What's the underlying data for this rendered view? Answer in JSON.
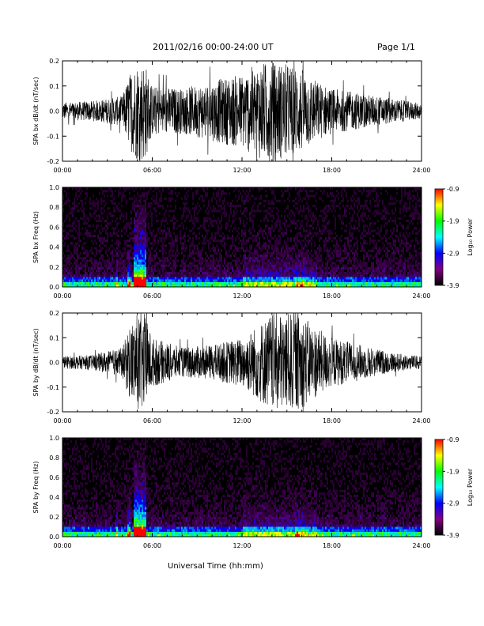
{
  "header": {
    "title": "2011/02/16  00:00-24:00 UT",
    "page": "Page 1/1"
  },
  "footer": {
    "xlabel": "Universal Time (hh:mm)"
  },
  "colorbar": {
    "label": "Log₁₀ Power",
    "ticks": [
      "-0.9",
      "-1.9",
      "-2.9",
      "-3.9"
    ],
    "colors": [
      "#ff0000",
      "#ffff00",
      "#00ff00",
      "#00ffff",
      "#0000ff",
      "#800080",
      "#000000"
    ]
  },
  "chart_data": [
    {
      "type": "line",
      "ylabel": "SPA bx dB/dt (nT/sec)",
      "xlim": [
        0,
        24
      ],
      "ylim": [
        -0.2,
        0.2
      ],
      "x_ticks": [
        "00:00",
        "06:00",
        "12:00",
        "18:00",
        "24:00"
      ],
      "y_ticks": [
        "-0.2",
        "-0.1",
        "0.0",
        "0.1",
        "0.2"
      ],
      "envelope": {
        "x": [
          0,
          2,
          4,
          4.5,
          5,
          5.5,
          6,
          8,
          10,
          12,
          13,
          14,
          15,
          16,
          17,
          18,
          20,
          22,
          24
        ],
        "amplitude": [
          0.035,
          0.04,
          0.06,
          0.15,
          0.2,
          0.2,
          0.1,
          0.09,
          0.12,
          0.15,
          0.19,
          0.2,
          0.19,
          0.17,
          0.12,
          0.09,
          0.07,
          0.05,
          0.03
        ]
      }
    },
    {
      "type": "heatmap",
      "ylabel": "SPA bx Freq (Hz)",
      "xlim": [
        0,
        24
      ],
      "ylim": [
        0,
        1.0
      ],
      "x_ticks": [
        "00:00",
        "06:00",
        "12:00",
        "18:00",
        "24:00"
      ],
      "y_ticks": [
        "0.0",
        "0.2",
        "0.4",
        "0.6",
        "0.8",
        "1.0"
      ],
      "zlim": [
        -3.9,
        -0.9
      ]
    },
    {
      "type": "line",
      "ylabel": "SPA by dB/dt (nT/sec)",
      "xlim": [
        0,
        24
      ],
      "ylim": [
        -0.2,
        0.2
      ],
      "x_ticks": [
        "00:00",
        "06:00",
        "12:00",
        "18:00",
        "24:00"
      ],
      "y_ticks": [
        "-0.2",
        "-0.1",
        "0.0",
        "0.1",
        "0.2"
      ],
      "envelope": {
        "x": [
          0,
          2,
          4,
          4.5,
          5,
          5.5,
          6,
          8,
          10,
          12,
          13,
          14,
          15,
          16,
          17,
          18,
          20,
          22,
          24
        ],
        "amplitude": [
          0.025,
          0.03,
          0.06,
          0.15,
          0.2,
          0.2,
          0.1,
          0.06,
          0.07,
          0.1,
          0.15,
          0.2,
          0.2,
          0.19,
          0.14,
          0.1,
          0.07,
          0.04,
          0.025
        ]
      }
    },
    {
      "type": "heatmap",
      "ylabel": "SPA by Freq (Hz)",
      "xlim": [
        0,
        24
      ],
      "ylim": [
        0,
        1.0
      ],
      "x_ticks": [
        "00:00",
        "06:00",
        "12:00",
        "18:00",
        "24:00"
      ],
      "y_ticks": [
        "0.0",
        "0.2",
        "0.4",
        "0.6",
        "0.8",
        "1.0"
      ],
      "zlim": [
        -3.9,
        -0.9
      ]
    }
  ]
}
